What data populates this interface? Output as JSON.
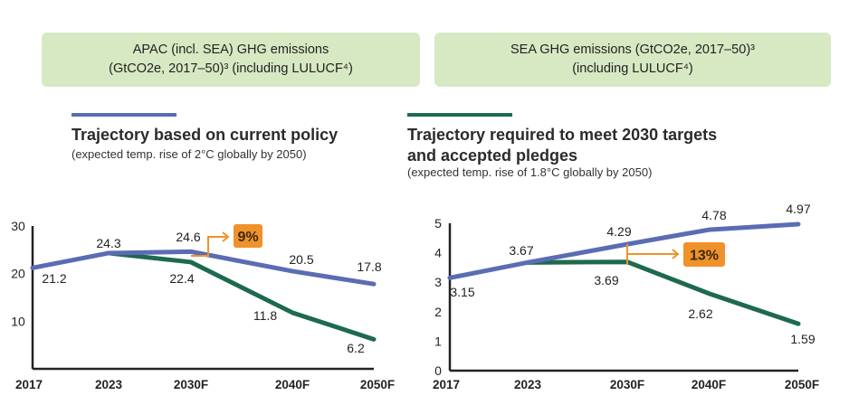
{
  "headers": [
    {
      "line1": "APAC (incl. SEA) GHG emissions",
      "line2": "(GtCO2e, 2017–50)³ (including LULUCF⁴)"
    },
    {
      "line1": "SEA GHG emissions (GtCO2e, 2017–50)³",
      "line2": "(including LULUCF⁴)"
    }
  ],
  "legend": [
    {
      "title": "Trajectory based on current policy",
      "title2": "",
      "subtitle": "(expected temp. rise of 2°C globally by 2050)",
      "color": "#5a6cb4"
    },
    {
      "title": "Trajectory required to meet 2030 targets",
      "title2": "and accepted pledges",
      "subtitle": "(expected temp. rise of 1.8°C globally by 2050)",
      "color": "#1d6a4c"
    }
  ],
  "chart_data": [
    {
      "type": "line",
      "categories": [
        "2017",
        "2023",
        "2030F",
        "2040F",
        "2050F"
      ],
      "yticks": [
        "10",
        "20",
        "30"
      ],
      "ylim": [
        0,
        30
      ],
      "series": [
        {
          "name": "Trajectory based on current policy",
          "values": [
            21.2,
            24.3,
            24.6,
            20.5,
            17.8
          ],
          "labels": [
            "21.2",
            "24.3",
            "24.6",
            "20.5",
            "17.8"
          ]
        },
        {
          "name": "Trajectory required to meet 2030 targets and accepted pledges",
          "values": [
            null,
            24.3,
            22.4,
            11.8,
            6.2
          ],
          "labels": [
            "",
            "",
            "22.4",
            "11.8",
            "6.2"
          ]
        }
      ],
      "annotation": "9%"
    },
    {
      "type": "line",
      "categories": [
        "2017",
        "2023",
        "2030F",
        "2040F",
        "2050F"
      ],
      "yticks": [
        "0",
        "1",
        "2",
        "3",
        "4",
        "5"
      ],
      "ylim": [
        0,
        5
      ],
      "series": [
        {
          "name": "Trajectory based on current policy",
          "values": [
            3.15,
            3.67,
            4.29,
            4.78,
            4.97
          ],
          "labels": [
            "3.15",
            "3.67",
            "4.29",
            "4.78",
            "4.97"
          ]
        },
        {
          "name": "Trajectory required to meet 2030 targets and accepted pledges",
          "values": [
            null,
            3.67,
            3.69,
            2.62,
            1.59
          ],
          "labels": [
            "",
            "",
            "3.69",
            "2.62",
            "1.59"
          ]
        }
      ],
      "annotation": "13%"
    }
  ],
  "colors": {
    "header_bg": "#d7e9c3",
    "callout": "#f0922b",
    "blue": "#5a6cb4",
    "green": "#1d6a4c"
  }
}
